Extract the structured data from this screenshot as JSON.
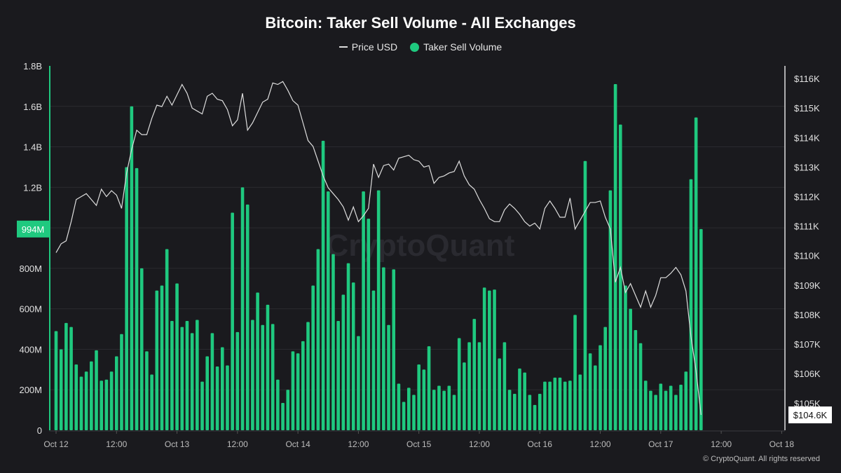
{
  "chart_data": {
    "type": "bar",
    "title": "Bitcoin: Taker Sell Volume - All Exchanges",
    "legend": [
      {
        "name": "Price USD",
        "type": "line",
        "color": "#dddddd"
      },
      {
        "name": "Taker Sell Volume",
        "type": "bar",
        "color": "#1fc97f"
      }
    ],
    "legend_placement": "top-center",
    "x_interval": "1 hour",
    "x_start": "Oct 12 00:00",
    "x_ticks": [
      "Oct 12",
      "12:00",
      "Oct 13",
      "12:00",
      "Oct 14",
      "12:00",
      "Oct 15",
      "12:00",
      "Oct 16",
      "12:00",
      "Oct 17",
      "12:00",
      "Oct 18"
    ],
    "y_left": {
      "label": "Taker Sell Volume",
      "ylim": [
        0,
        1800000000
      ],
      "ticks": [
        "0",
        "200M",
        "400M",
        "600M",
        "800M",
        "1.2B",
        "1.4B",
        "1.6B",
        "1.8B"
      ],
      "tick_values_m": [
        0,
        200,
        400,
        600,
        800,
        1200,
        1400,
        1600,
        1800
      ],
      "current_label": "994M"
    },
    "y_right": {
      "label": "Price USD",
      "ylim_k": [
        104.08,
        116.43
      ],
      "ticks": [
        "$105K",
        "$106K",
        "$107K",
        "$108K",
        "$109K",
        "$110K",
        "$111K",
        "$112K",
        "$113K",
        "$114K",
        "$115K",
        "$116K"
      ],
      "tick_values_k": [
        105,
        106,
        107,
        108,
        109,
        110,
        111,
        112,
        113,
        114,
        115,
        116
      ],
      "current_label": "$104.6K"
    },
    "grid": true,
    "series": [
      {
        "name": "Taker Sell Volume",
        "unit": "M USD",
        "values": [
          490,
          400,
          530,
          510,
          325,
          265,
          290,
          340,
          395,
          245,
          250,
          290,
          365,
          475,
          1300,
          1600,
          1295,
          800,
          390,
          275,
          690,
          715,
          895,
          540,
          725,
          510,
          540,
          480,
          545,
          240,
          365,
          480,
          315,
          410,
          320,
          1075,
          485,
          1200,
          1115,
          545,
          680,
          520,
          620,
          525,
          250,
          135,
          200,
          390,
          380,
          440,
          535,
          715,
          895,
          1430,
          1180,
          870,
          540,
          670,
          825,
          730,
          465,
          1180,
          1045,
          690,
          1185,
          805,
          520,
          795,
          230,
          140,
          210,
          175,
          325,
          300,
          415,
          200,
          220,
          195,
          220,
          175,
          455,
          335,
          435,
          550,
          435,
          705,
          690,
          695,
          355,
          435,
          200,
          180,
          305,
          285,
          175,
          125,
          180,
          240,
          240,
          260,
          260,
          240,
          245,
          570,
          275,
          1330,
          380,
          320,
          420,
          510,
          1185,
          1710,
          1510,
          715,
          600,
          495,
          430,
          245,
          195,
          175,
          230,
          195,
          220,
          175,
          225,
          290,
          1240,
          1545,
          994
        ]
      },
      {
        "name": "Price USD",
        "unit": "K USD",
        "values": [
          110.1,
          110.4,
          110.5,
          111.15,
          111.9,
          112.0,
          112.1,
          111.9,
          111.7,
          112.25,
          112.0,
          112.2,
          112.05,
          111.6,
          112.8,
          113.6,
          114.25,
          114.1,
          114.1,
          114.65,
          115.1,
          115.05,
          115.4,
          115.1,
          115.45,
          115.8,
          115.5,
          115.0,
          114.9,
          114.8,
          115.4,
          115.5,
          115.3,
          115.25,
          114.95,
          114.4,
          114.6,
          115.5,
          114.25,
          114.5,
          114.85,
          115.2,
          115.3,
          115.85,
          115.8,
          115.9,
          115.6,
          115.25,
          115.1,
          114.5,
          113.9,
          113.7,
          113.2,
          112.7,
          112.3,
          112.1,
          111.9,
          111.65,
          111.2,
          111.65,
          111.15,
          111.35,
          111.6,
          113.1,
          112.65,
          113.05,
          113.1,
          112.9,
          113.3,
          113.35,
          113.4,
          113.25,
          113.2,
          113.0,
          113.05,
          112.45,
          112.65,
          112.7,
          112.8,
          112.85,
          113.2,
          112.7,
          112.4,
          112.25,
          111.9,
          111.6,
          111.25,
          111.15,
          111.15,
          111.55,
          111.75,
          111.6,
          111.4,
          111.15,
          111.0,
          111.1,
          110.9,
          111.6,
          111.85,
          111.6,
          111.3,
          111.3,
          111.95,
          110.9,
          111.2,
          111.5,
          111.8,
          111.8,
          111.85,
          111.3,
          110.9,
          109.1,
          109.6,
          108.75,
          109.05,
          108.65,
          108.25,
          108.8,
          108.25,
          108.65,
          109.25,
          109.25,
          109.4,
          109.6,
          109.35,
          108.8,
          107.25,
          106.1,
          104.6
        ]
      }
    ],
    "watermark": "CryptoQuant",
    "footer": "© CryptoQuant. All rights reserved"
  }
}
